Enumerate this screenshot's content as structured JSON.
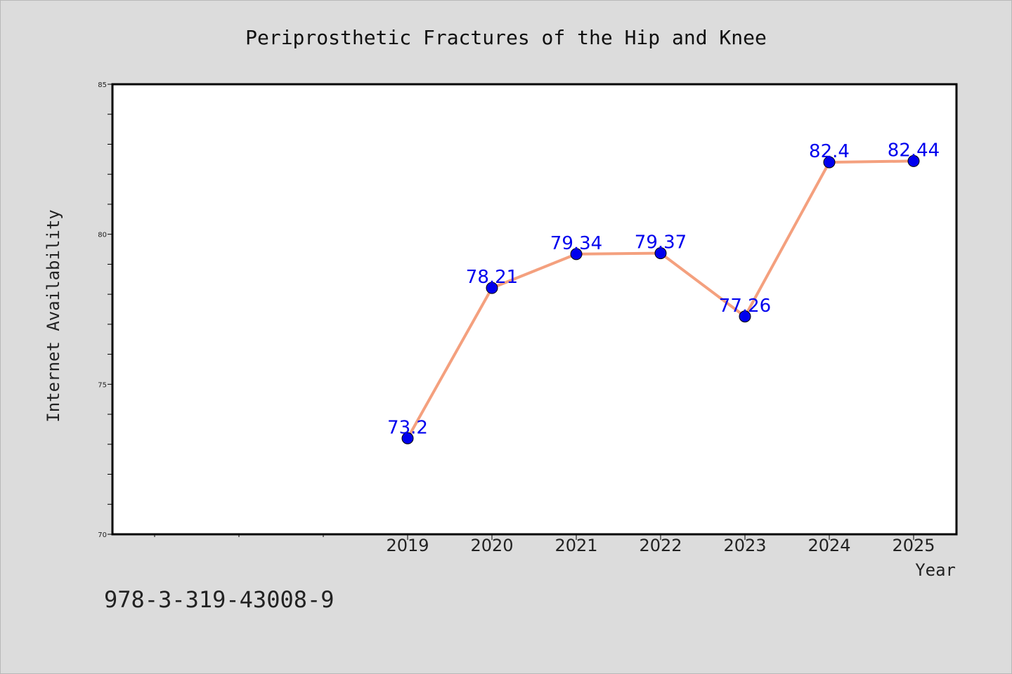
{
  "chart_data": {
    "type": "line",
    "title": "Periprosthetic Fractures of the Hip and Knee",
    "xlabel": "Year",
    "ylabel": "Internet Availability",
    "x": [
      "2019",
      "2020",
      "2021",
      "2022",
      "2023",
      "2024",
      "2025"
    ],
    "series": [
      {
        "values": [
          73.2,
          78.21,
          79.34,
          79.37,
          77.26,
          82.4,
          82.44
        ],
        "labels": [
          "73.2",
          "78.21",
          "79.34",
          "79.37",
          "77.26",
          "82.4",
          "82.44"
        ]
      }
    ],
    "ylim": [
      70,
      85
    ],
    "yticks": [
      "70",
      "75",
      "80",
      "85"
    ],
    "grid": false,
    "colors": {
      "line": "#f4a07e",
      "marker": "#0000ee",
      "data_label": "#0000ee",
      "background": "#dcdcdc",
      "plot_background": "#ffffff"
    }
  },
  "footer": {
    "isbn": "978-3-319-43008-9"
  }
}
